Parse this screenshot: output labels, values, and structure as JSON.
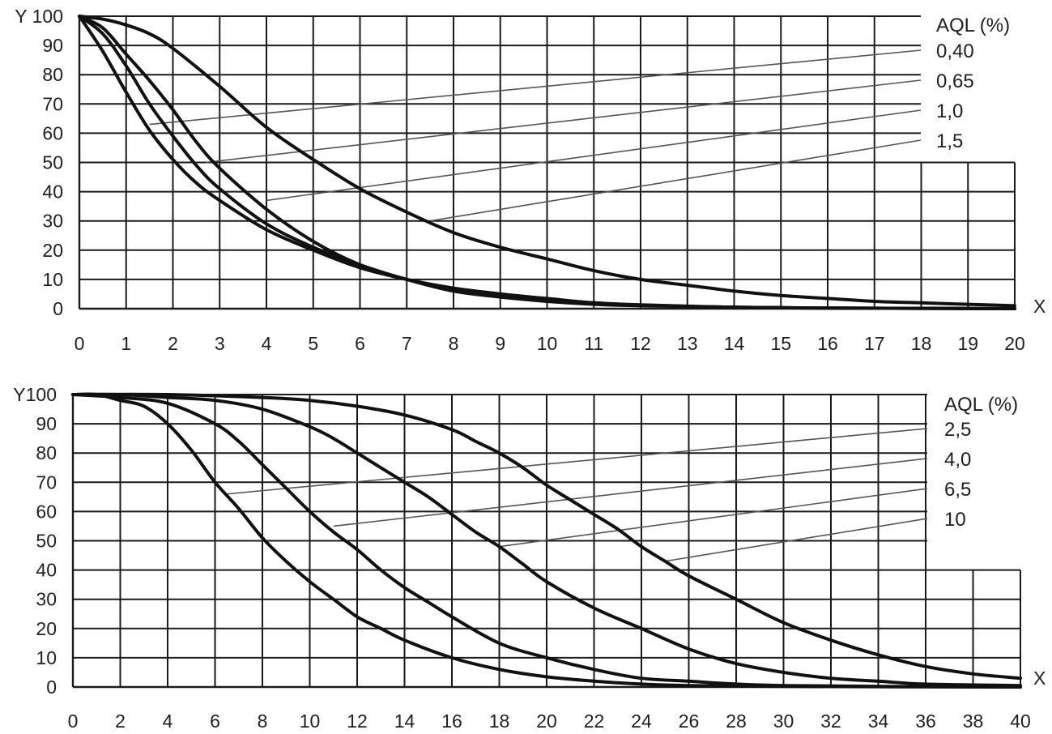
{
  "chart_data": [
    {
      "type": "line",
      "ylabel": "Y",
      "xlabel": "X",
      "xlim": [
        0,
        20
      ],
      "ylim": [
        0,
        100
      ],
      "x_ticks": [
        0,
        1,
        2,
        3,
        4,
        5,
        6,
        7,
        8,
        9,
        10,
        11,
        12,
        13,
        14,
        15,
        16,
        17,
        18,
        19,
        20
      ],
      "y_ticks": [
        0,
        10,
        20,
        30,
        40,
        50,
        60,
        70,
        80,
        90,
        100
      ],
      "grid": true,
      "legend_title": "AQL (%)",
      "series": [
        {
          "name": "0,40",
          "x": [
            0,
            0.5,
            1,
            1.5,
            2,
            3,
            4,
            5,
            6,
            7,
            8,
            9,
            10,
            11,
            12,
            13,
            14,
            15,
            16,
            17,
            18,
            19,
            20
          ],
          "values": [
            100,
            99,
            97,
            94,
            89,
            76,
            62,
            51,
            41,
            33,
            26,
            21,
            17,
            13,
            10,
            8,
            6,
            4.5,
            3.5,
            2.5,
            2,
            1.5,
            1
          ]
        },
        {
          "name": "0,65",
          "x": [
            0,
            0.5,
            1,
            1.5,
            2,
            2.5,
            3,
            4,
            5,
            6,
            7,
            8,
            9,
            10,
            11,
            12,
            14,
            16,
            18,
            20
          ],
          "values": [
            100,
            96,
            87,
            78,
            68,
            57,
            48,
            34,
            23,
            15,
            10,
            6,
            4,
            2.5,
            1.5,
            1,
            0.5,
            0.2,
            0.1,
            0
          ]
        },
        {
          "name": "1,0",
          "x": [
            0,
            0.5,
            1,
            1.5,
            2,
            2.5,
            3,
            4,
            5,
            6,
            7,
            8,
            9,
            10,
            11,
            12,
            14,
            16,
            18,
            20
          ],
          "values": [
            100,
            94,
            83,
            70,
            59,
            49,
            41,
            29,
            21,
            15,
            10,
            7,
            5,
            3,
            2,
            1.2,
            0.5,
            0.2,
            0.1,
            0
          ]
        },
        {
          "name": "1,5",
          "x": [
            0,
            0.5,
            1,
            1.5,
            2,
            2.5,
            3,
            4,
            5,
            6,
            7,
            8,
            9,
            10,
            11,
            12,
            14,
            16,
            18,
            20
          ],
          "values": [
            100,
            88,
            74,
            61,
            51,
            43,
            37,
            27,
            20,
            14,
            10,
            7,
            5,
            3.5,
            2,
            1.3,
            0.5,
            0.2,
            0.1,
            0
          ]
        }
      ],
      "leaders": [
        {
          "name": "0,40",
          "x": 1.5,
          "y": 63
        },
        {
          "name": "0,65",
          "x": 2.7,
          "y": 50
        },
        {
          "name": "1,0",
          "x": 4.0,
          "y": 37
        },
        {
          "name": "1,5",
          "x": 7.5,
          "y": 30
        }
      ]
    },
    {
      "type": "line",
      "ylabel": "Y",
      "xlabel": "X",
      "xlim": [
        0,
        40
      ],
      "ylim": [
        0,
        100
      ],
      "x_ticks": [
        0,
        2,
        4,
        6,
        8,
        10,
        12,
        14,
        16,
        18,
        20,
        22,
        24,
        26,
        28,
        30,
        32,
        34,
        36,
        38,
        40
      ],
      "y_ticks": [
        0,
        10,
        20,
        30,
        40,
        50,
        60,
        70,
        80,
        90,
        100
      ],
      "grid": true,
      "legend_title": "AQL (%)",
      "series": [
        {
          "name": "2,5",
          "x": [
            0,
            4,
            8,
            10,
            12,
            14,
            16,
            17,
            18,
            19,
            20,
            21,
            22,
            23,
            24,
            25,
            26,
            28,
            30,
            32,
            34,
            36,
            38,
            40
          ],
          "values": [
            100,
            100,
            99,
            98,
            96,
            93,
            88,
            84,
            80,
            75,
            69,
            64,
            59,
            54,
            48,
            43,
            38,
            30,
            22,
            16,
            11,
            7,
            4.5,
            3
          ]
        },
        {
          "name": "4,0",
          "x": [
            0,
            2,
            4,
            6,
            8,
            10,
            11,
            12,
            13,
            14,
            15,
            16,
            17,
            18,
            19,
            20,
            22,
            24,
            26,
            28,
            30,
            32,
            34,
            36,
            40
          ],
          "values": [
            100,
            100,
            99,
            98,
            95,
            89,
            85,
            80,
            75,
            70,
            65,
            59,
            53,
            48,
            42,
            36,
            27,
            20,
            13,
            8,
            5,
            3,
            2,
            1,
            0.5
          ]
        },
        {
          "name": "6,5",
          "x": [
            0,
            2,
            4,
            6,
            7,
            8,
            9,
            10,
            11,
            12,
            13,
            14,
            15,
            16,
            18,
            20,
            22,
            24,
            26,
            28,
            30,
            34,
            40
          ],
          "values": [
            100,
            99,
            97,
            90,
            84,
            76,
            68,
            60,
            53,
            47,
            40,
            34,
            29,
            24,
            15,
            10,
            6,
            3,
            2,
            1,
            0.5,
            0.2,
            0
          ]
        },
        {
          "name": "10",
          "x": [
            0,
            1,
            2,
            3,
            4,
            5,
            6,
            7,
            8,
            9,
            10,
            11,
            12,
            13,
            14,
            16,
            18,
            20,
            22,
            24,
            26,
            30,
            40
          ],
          "values": [
            100,
            100,
            98,
            96,
            90,
            81,
            70,
            61,
            51,
            43,
            36,
            30,
            24,
            20,
            16,
            10,
            6,
            3.5,
            2,
            1,
            0.5,
            0.2,
            0
          ]
        }
      ],
      "leaders": [
        {
          "name": "2,5",
          "x": 6.5,
          "y": 66
        },
        {
          "name": "4,0",
          "x": 11,
          "y": 55
        },
        {
          "name": "6,5",
          "x": 18,
          "y": 48
        },
        {
          "name": "10",
          "x": 25,
          "y": 43
        }
      ]
    }
  ]
}
